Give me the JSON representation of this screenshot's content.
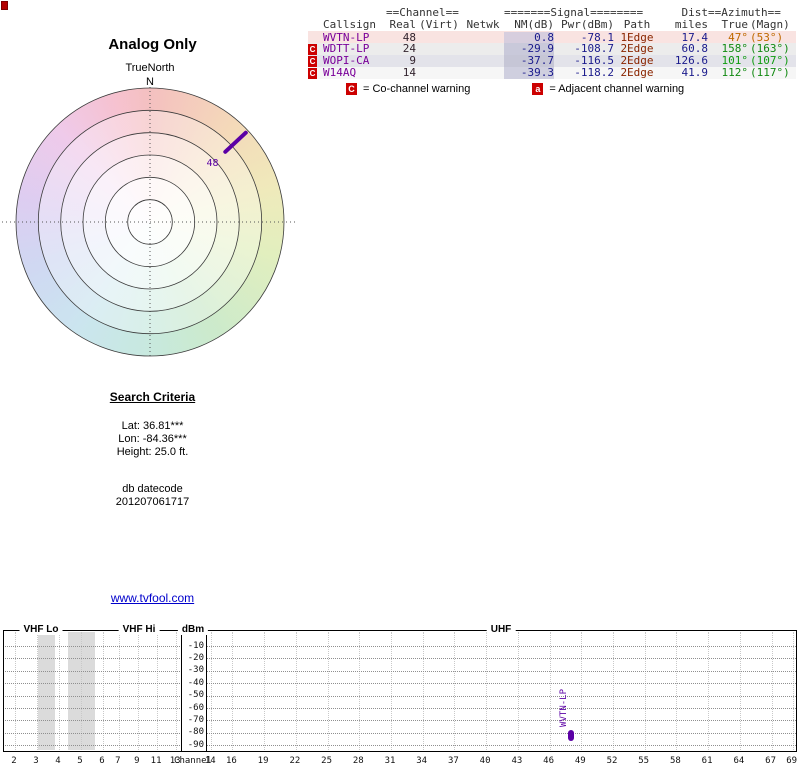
{
  "left_panel": {
    "title": "Analog Only",
    "radar": {
      "true_north_label": "TrueNorth",
      "north_label": "N"
    },
    "search_criteria": {
      "heading": "Search Criteria",
      "lat": "Lat: 36.81***",
      "lon": "Lon: -84.36***",
      "height": "Height: 25.0 ft.",
      "db_line1": "db datecode",
      "db_line2": "201207061717"
    },
    "link_text": "www.tvfool.com"
  },
  "table": {
    "group_headers": {
      "channel": "==Channel==",
      "signal": "=======Signal========",
      "dist": "Dist",
      "azimuth": "==Azimuth=="
    },
    "col_headers": {
      "callsign": "Callsign",
      "real": "Real",
      "virt": "(Virt)",
      "netwk": "Netwk",
      "nm": "NM(dB)",
      "pwr": "Pwr(dBm)",
      "path": "Path",
      "miles": "miles",
      "true": "True",
      "magn": "(Magn)"
    },
    "rows": [
      {
        "warn": "",
        "callsign": "WVTN-LP",
        "real": "48",
        "virt": "",
        "netwk": "",
        "nm": "0.8",
        "pwr": "-78.1",
        "path": "1Edge",
        "miles": "17.4",
        "true": "47°",
        "magn": "(53°)",
        "row_bg": "#f9e3e1",
        "nm_bg": "#d7cede",
        "az_color": "#bf6900",
        "callsign_color": "#7a0099"
      },
      {
        "warn": "C",
        "callsign": "WDTT-LP",
        "real": "24",
        "virt": "",
        "netwk": "",
        "nm": "-29.9",
        "pwr": "-108.7",
        "path": "2Edge",
        "miles": "60.8",
        "true": "158°",
        "magn": "(163°)",
        "row_bg": "#ececec",
        "nm_bg": "#c9c9da",
        "az_color": "#128a12",
        "callsign_color": "#7a0099"
      },
      {
        "warn": "C",
        "callsign": "WOPI-CA",
        "real": "9",
        "virt": "",
        "netwk": "",
        "nm": "-37.7",
        "pwr": "-116.5",
        "path": "2Edge",
        "miles": "126.6",
        "true": "101°",
        "magn": "(107°)",
        "row_bg": "#e3e3ea",
        "nm_bg": "#c6c6d6",
        "az_color": "#0f9c0f",
        "callsign_color": "#7a0099"
      },
      {
        "warn": "C",
        "callsign": "W14AQ",
        "real": "14",
        "virt": "",
        "netwk": "",
        "nm": "-39.3",
        "pwr": "-118.2",
        "path": "2Edge",
        "miles": "41.9",
        "true": "112°",
        "magn": "(117°)",
        "row_bg": "#f6f6f6",
        "nm_bg": "#cfcfdf",
        "az_color": "#128a12",
        "callsign_color": "#7a0099"
      }
    ],
    "legend": {
      "c_symbol": "C",
      "c_text": "= Co-channel warning",
      "a_symbol": "a",
      "a_text": "= Adjacent channel warning"
    }
  },
  "chart_data": [
    {
      "type": "scatter",
      "subtype": "polar_azimuth_radar",
      "title": "Analog Only",
      "north_label": "N",
      "rings": 6,
      "points": [
        {
          "station": "WVTN-LP",
          "channel_label": "48",
          "azimuth_true_deg": 47,
          "color": "#5b00a5"
        }
      ]
    },
    {
      "type": "scatter",
      "title": "",
      "ylabel": "dBm",
      "xlabel": "Channel",
      "ylim": [
        -10,
        -90
      ],
      "yticks": [
        "-10",
        "-20",
        "-30",
        "-40",
        "-50",
        "-60",
        "-70",
        "-80",
        "-90"
      ],
      "sections": [
        {
          "label": "VHF Lo",
          "channels": [
            2,
            3,
            4,
            5,
            6
          ]
        },
        {
          "label": "VHF Hi",
          "channels": [
            7,
            9,
            11,
            13
          ]
        },
        {
          "label": "UHF",
          "channels": [
            14,
            16,
            19,
            22,
            25,
            28,
            31,
            34,
            37,
            40,
            43,
            46,
            49,
            52,
            55,
            58,
            61,
            64,
            67,
            69
          ]
        }
      ],
      "shaded_vhf_ranges": [
        {
          "from": 3.55,
          "to": 4.3
        },
        {
          "from": 4.9,
          "to": 6.15
        }
      ],
      "points": [
        {
          "label": "WVTN-LP",
          "channel": 48,
          "dbm_top": -78.1,
          "dbm_bottom": -86.5,
          "color": "#5b00a5"
        }
      ]
    }
  ]
}
